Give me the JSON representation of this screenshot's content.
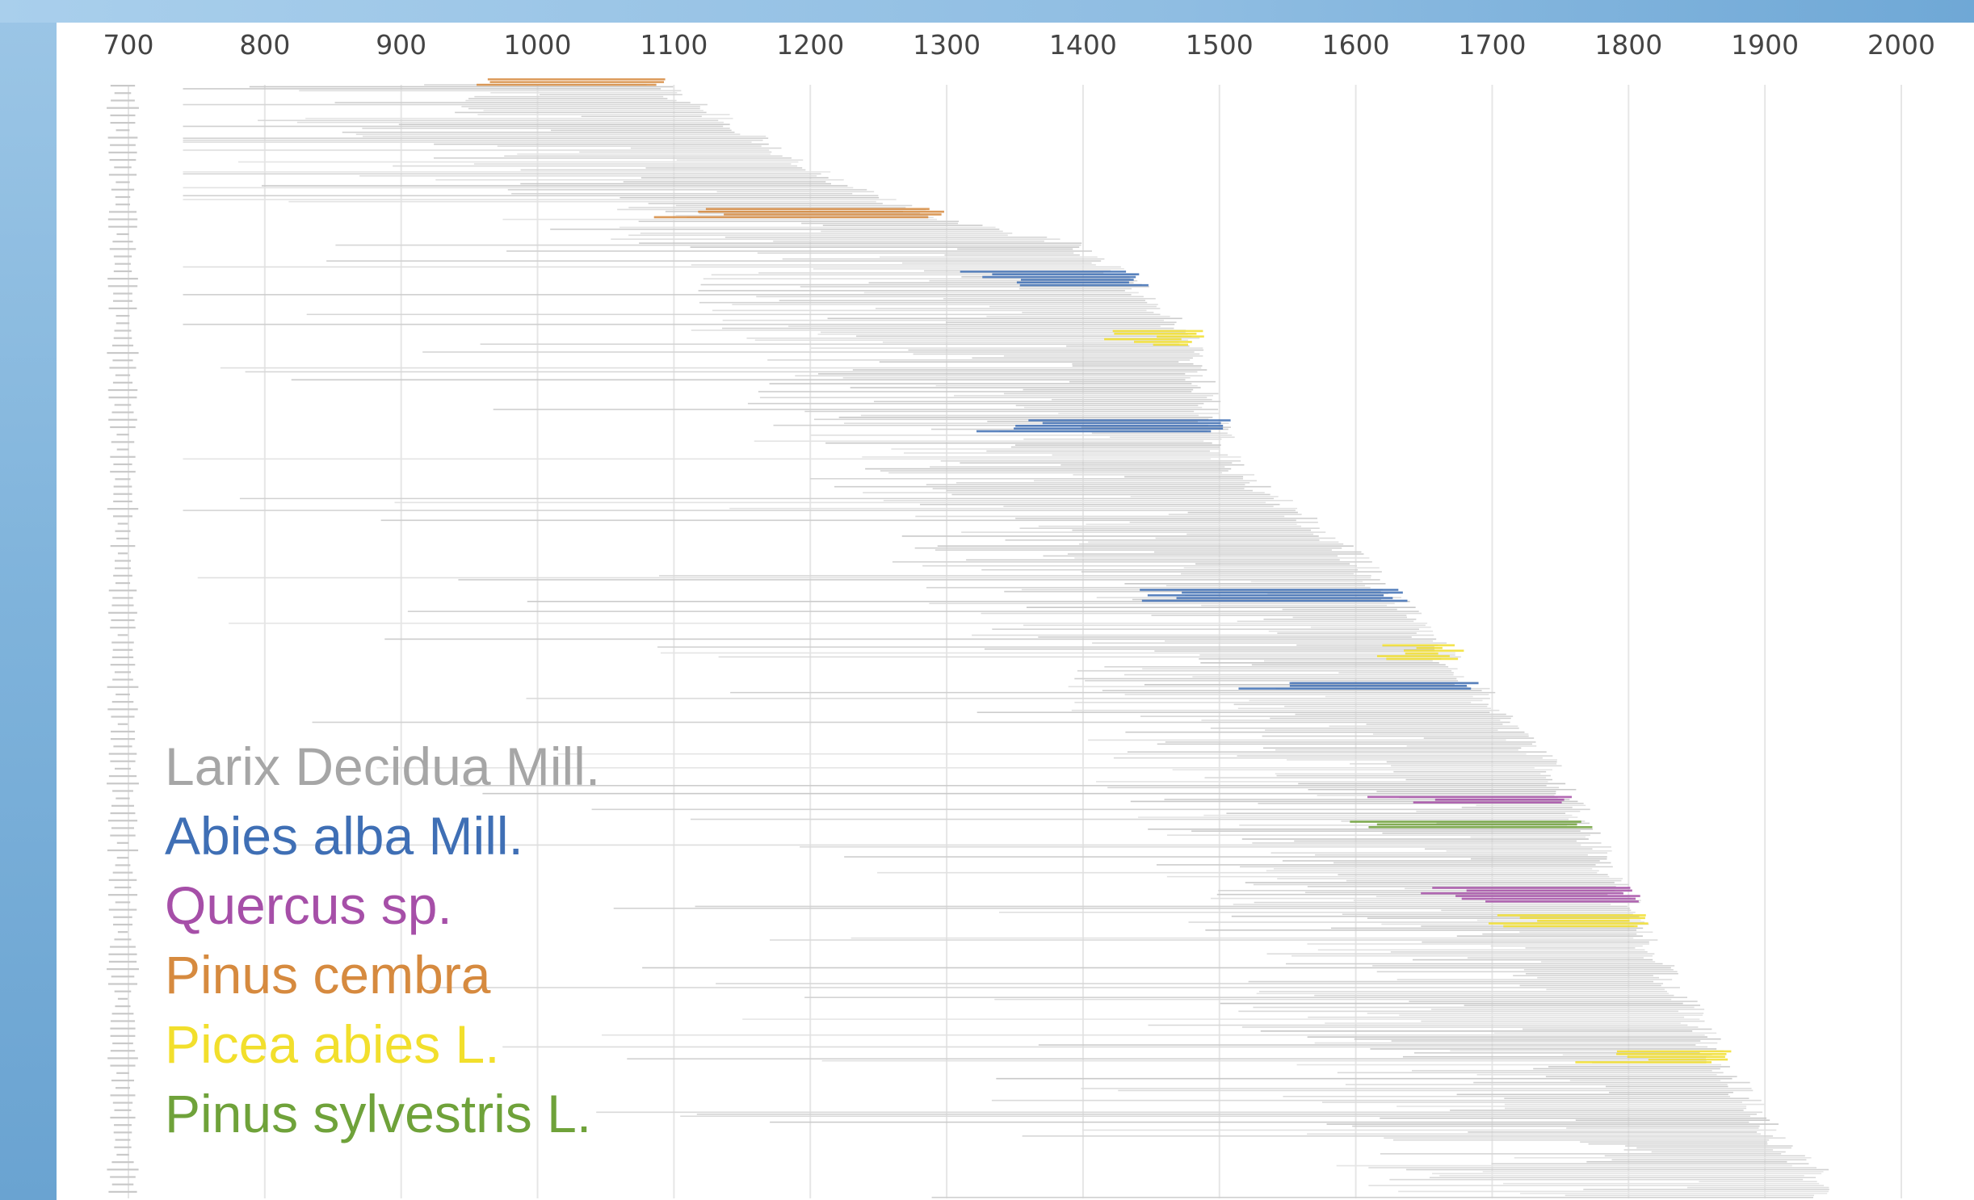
{
  "chart_data": {
    "type": "bar",
    "subtype": "horizontal-range",
    "title": "",
    "xlabel": "",
    "ylabel": "",
    "x_ticks": [
      700,
      800,
      900,
      1000,
      1100,
      1200,
      1300,
      1400,
      1500,
      1600,
      1700,
      1800,
      1900,
      2000
    ],
    "xlim": [
      700,
      2000
    ],
    "grid": true,
    "legend_position": "bottom-left",
    "series": [
      {
        "name": "Larix Decidua Mill.",
        "color": "#a6a6a6"
      },
      {
        "name": "Abies alba Mill.",
        "color": "#3f6fb5"
      },
      {
        "name": "Quercus sp.",
        "color": "#a64fa8"
      },
      {
        "name": "Pinus cembra",
        "color": "#d68a3f"
      },
      {
        "name": "Picea abies L.",
        "color": "#f2df2c"
      },
      {
        "name": "Pinus sylvestris L.",
        "color": "#6fa23a"
      }
    ],
    "envelope_end_year": [
      {
        "row": 0,
        "year": 1100
      },
      {
        "row": 40,
        "year": 1170
      },
      {
        "row": 80,
        "year": 1230
      },
      {
        "row": 110,
        "year": 1310
      },
      {
        "row": 130,
        "year": 1410
      },
      {
        "row": 170,
        "year": 1460
      },
      {
        "row": 210,
        "year": 1490
      },
      {
        "row": 250,
        "year": 1500
      },
      {
        "row": 310,
        "year": 1520
      },
      {
        "row": 370,
        "year": 1600
      },
      {
        "row": 440,
        "year": 1660
      },
      {
        "row": 500,
        "year": 1710
      },
      {
        "row": 560,
        "year": 1760
      },
      {
        "row": 640,
        "year": 1800
      },
      {
        "row": 720,
        "year": 1840
      },
      {
        "row": 790,
        "year": 1880
      },
      {
        "row": 850,
        "year": 1920
      },
      {
        "row": 880,
        "year": 1950
      }
    ],
    "highlighted_ranges": [
      {
        "series": "Pinus cembra",
        "start": 950,
        "end": 1100
      },
      {
        "series": "Pinus cembra",
        "start": 1080,
        "end": 1300
      },
      {
        "series": "Abies alba Mill.",
        "start": 1300,
        "end": 1450
      },
      {
        "series": "Abies alba Mill.",
        "start": 1320,
        "end": 1510
      },
      {
        "series": "Picea abies L.",
        "start": 1400,
        "end": 1490
      },
      {
        "series": "Abies alba Mill.",
        "start": 1420,
        "end": 1640
      },
      {
        "series": "Picea abies L.",
        "start": 1590,
        "end": 1680
      },
      {
        "series": "Abies alba Mill.",
        "start": 1500,
        "end": 1700
      },
      {
        "series": "Quercus sp.",
        "start": 1600,
        "end": 1770
      },
      {
        "series": "Pinus sylvestris L.",
        "start": 1580,
        "end": 1780
      },
      {
        "series": "Quercus sp.",
        "start": 1640,
        "end": 1810
      },
      {
        "series": "Picea abies L.",
        "start": 1680,
        "end": 1820
      },
      {
        "series": "Picea abies L.",
        "start": 1760,
        "end": 1880
      }
    ]
  }
}
